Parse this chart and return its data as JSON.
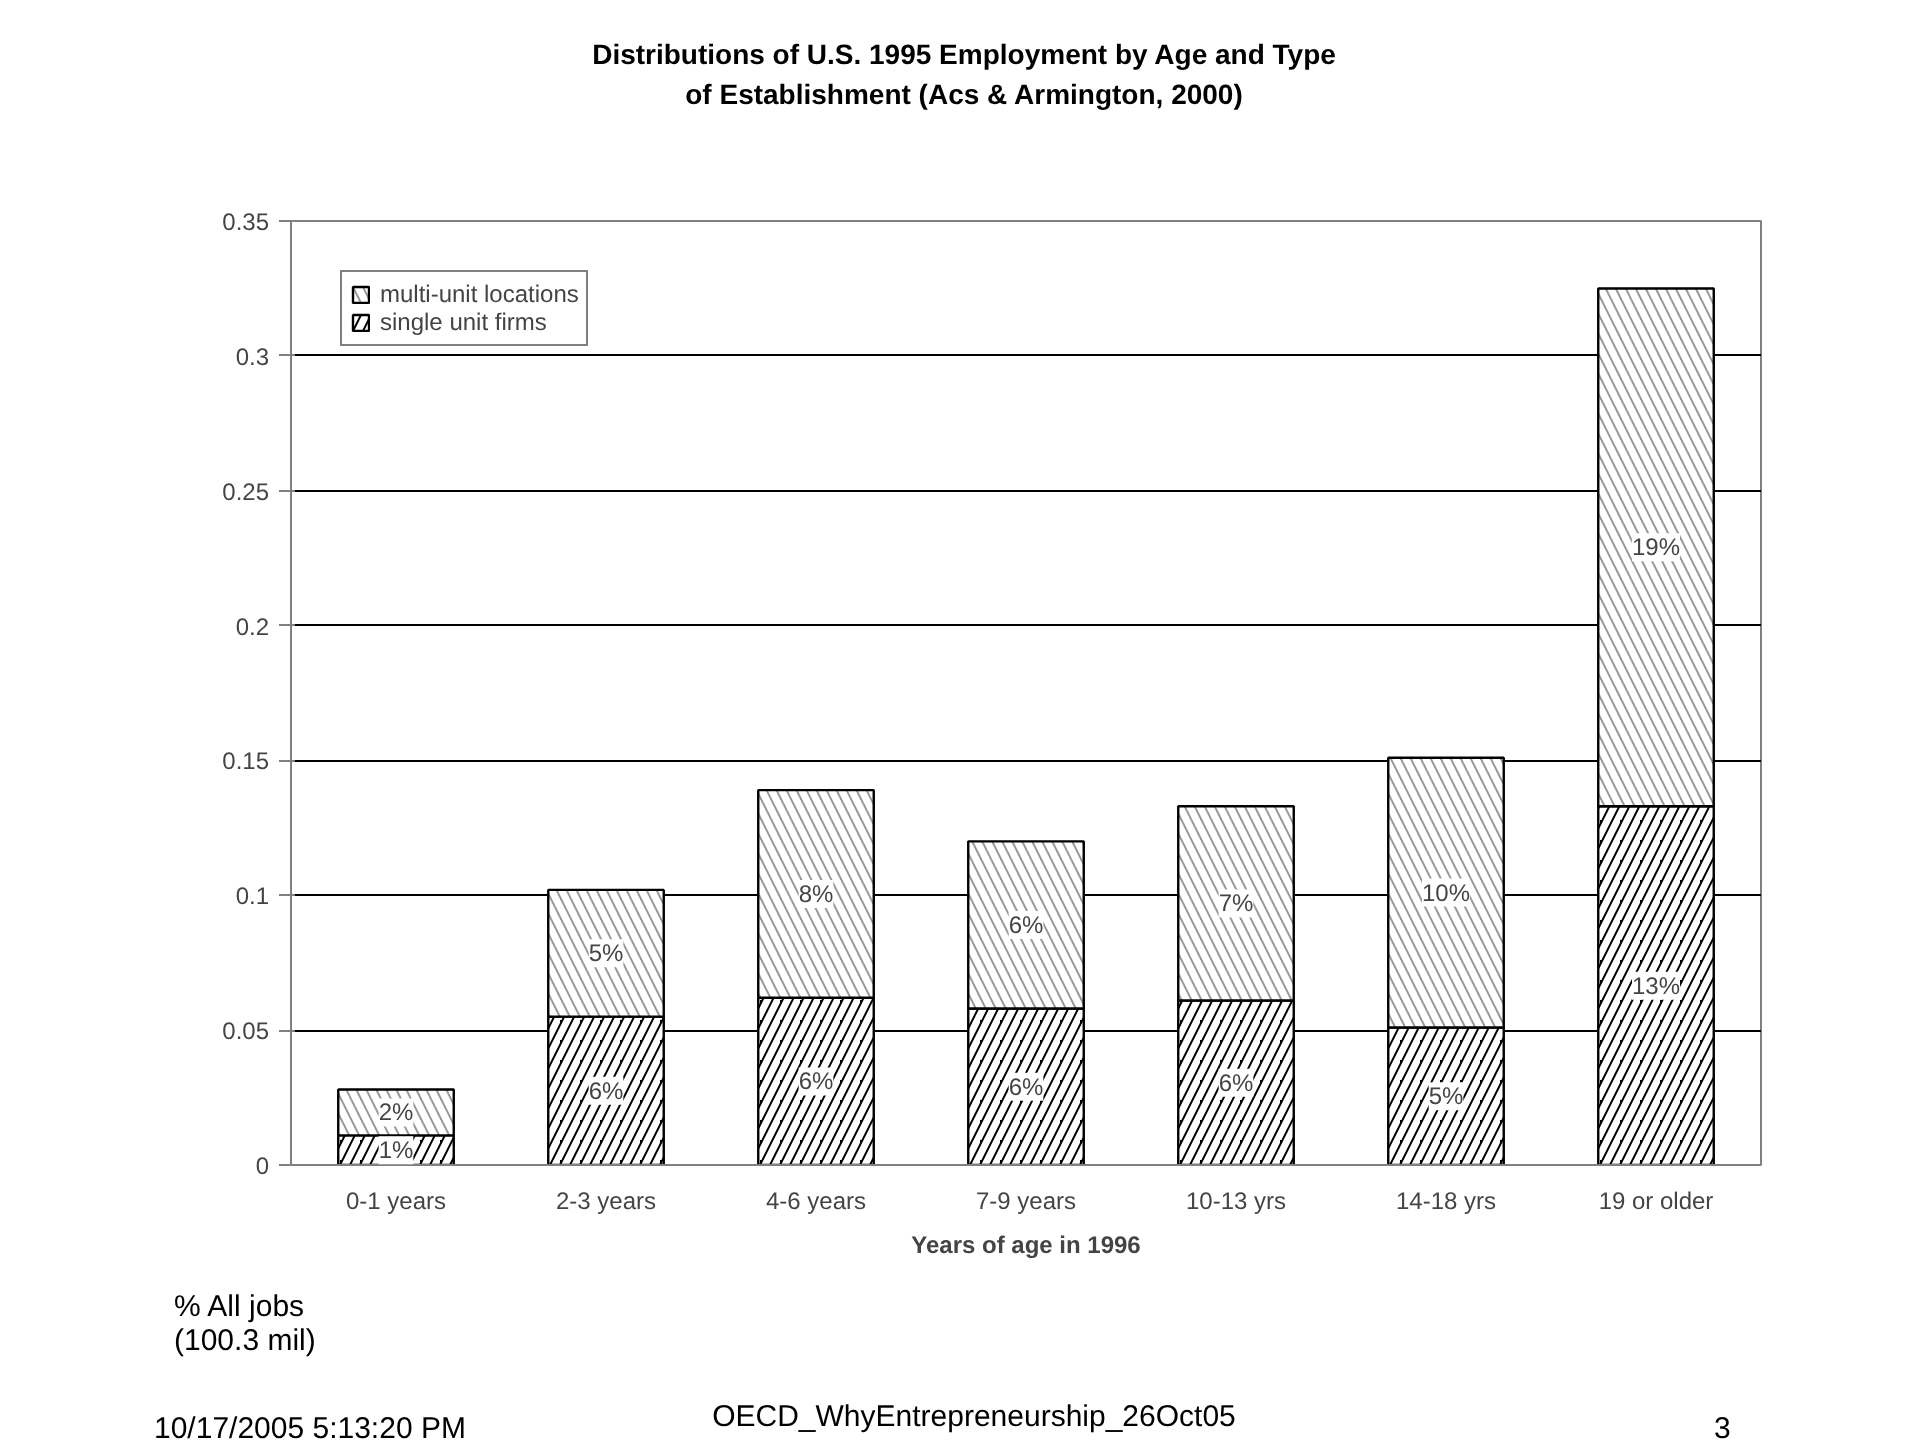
{
  "chart_data": {
    "type": "bar",
    "title": "Distributions of U.S. 1995 Employment by Age and Type of Establishment (Acs & Armington, 2000)",
    "xlabel": "Years of age in 1996",
    "categories": [
      "0-1 years",
      "2-3 years",
      "4-6 years",
      "7-9 years",
      "10-13 yrs",
      "14-18 yrs",
      "19 or older"
    ],
    "stacked": true,
    "series": [
      {
        "name": "single unit firms",
        "color": "#000000",
        "values": [
          0.011,
          0.055,
          0.062,
          0.058,
          0.061,
          0.051,
          0.133
        ],
        "value_labels": [
          "1%",
          "6%",
          "6%",
          "6%",
          "6%",
          "5%",
          "13%"
        ]
      },
      {
        "name": "multi-unit locations",
        "color": "#999999",
        "values": [
          0.017,
          0.047,
          0.077,
          0.062,
          0.072,
          0.1,
          0.192
        ],
        "value_labels": [
          "2%",
          "5%",
          "8%",
          "6%",
          "7%",
          "10%",
          "19%"
        ]
      }
    ],
    "ylim": [
      0,
      0.35
    ],
    "yticks": [
      0,
      {
        "value": 0.05,
        "label": "0.05"
      },
      {
        "value": 0.1,
        "label": "0.1"
      },
      {
        "value": 0.15,
        "label": "0.15"
      },
      {
        "value": 0.2,
        "label": "0.2"
      },
      {
        "value": 0.25,
        "label": "0.25"
      },
      {
        "value": 0.3,
        "label": "0.3"
      },
      {
        "value": 0.35,
        "label": "0.35"
      }
    ],
    "grid": "y",
    "legend": "top left",
    "annotations": [
      "% All jobs\n(100.3 mil)",
      "10/17/2005 5:13:20 PM",
      "OECD_WhyEntrepreneurship_26Oct05",
      "3"
    ]
  }
}
